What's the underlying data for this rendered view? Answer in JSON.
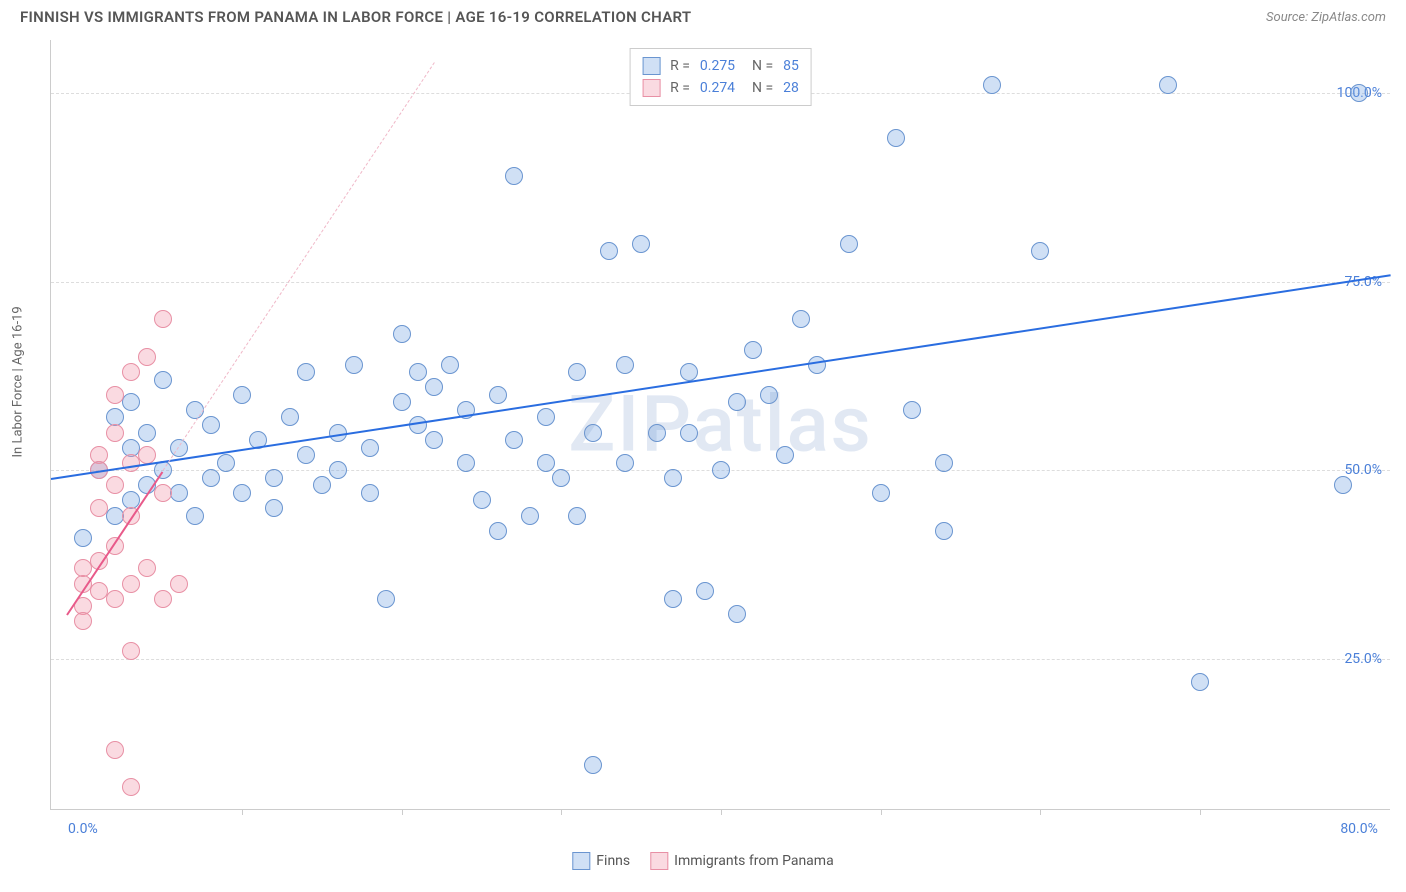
{
  "title": "FINNISH VS IMMIGRANTS FROM PANAMA IN LABOR FORCE | AGE 16-19 CORRELATION CHART",
  "source": "Source: ZipAtlas.com",
  "ylabel": "In Labor Force | Age 16-19",
  "watermark": "ZIPatlas",
  "chart": {
    "type": "scatter",
    "background_color": "#ffffff",
    "grid_color": "#dddddd",
    "axis_color": "#cccccc",
    "tick_label_color": "#4a7fd8",
    "xlim": [
      -2,
      82
    ],
    "ylim": [
      5,
      107
    ],
    "xticks": [
      0,
      80
    ],
    "xtick_minor": [
      10,
      20,
      30,
      40,
      50,
      60,
      70
    ],
    "yticks": [
      25,
      50,
      75,
      100
    ],
    "ytick_labels": [
      "25.0%",
      "50.0%",
      "75.0%",
      "100.0%"
    ],
    "xtick_labels": [
      "0.0%",
      "80.0%"
    ],
    "point_radius": 9,
    "point_stroke_width": 1.2,
    "series": [
      {
        "name": "Finns",
        "fill": "rgba(120, 165, 225, 0.35)",
        "stroke": "#6a95d0",
        "trend_color": "#2a6de0",
        "trend_dashed_color": "#a8c0e8",
        "R": "0.275",
        "N": "85",
        "trend": {
          "x1": -2,
          "y1": 49,
          "x2": 82,
          "y2": 76
        },
        "points": [
          [
            0,
            41
          ],
          [
            1,
            50
          ],
          [
            2,
            57
          ],
          [
            2,
            44
          ],
          [
            3,
            53
          ],
          [
            3,
            46
          ],
          [
            3,
            59
          ],
          [
            4,
            48
          ],
          [
            4,
            55
          ],
          [
            5,
            50
          ],
          [
            5,
            62
          ],
          [
            6,
            47
          ],
          [
            6,
            53
          ],
          [
            7,
            58
          ],
          [
            7,
            44
          ],
          [
            8,
            49
          ],
          [
            8,
            56
          ],
          [
            9,
            51
          ],
          [
            10,
            60
          ],
          [
            10,
            47
          ],
          [
            11,
            54
          ],
          [
            12,
            49
          ],
          [
            12,
            45
          ],
          [
            13,
            57
          ],
          [
            14,
            52
          ],
          [
            14,
            63
          ],
          [
            15,
            48
          ],
          [
            16,
            55
          ],
          [
            16,
            50
          ],
          [
            17,
            64
          ],
          [
            18,
            53
          ],
          [
            18,
            47
          ],
          [
            19,
            33
          ],
          [
            20,
            59
          ],
          [
            20,
            68
          ],
          [
            21,
            63
          ],
          [
            21,
            56
          ],
          [
            22,
            61
          ],
          [
            22,
            54
          ],
          [
            23,
            64
          ],
          [
            24,
            58
          ],
          [
            24,
            51
          ],
          [
            25,
            46
          ],
          [
            26,
            60
          ],
          [
            26,
            42
          ],
          [
            27,
            54
          ],
          [
            27,
            89
          ],
          [
            28,
            44
          ],
          [
            29,
            57
          ],
          [
            29,
            51
          ],
          [
            30,
            49
          ],
          [
            31,
            63
          ],
          [
            31,
            44
          ],
          [
            32,
            55
          ],
          [
            32,
            11
          ],
          [
            33,
            79
          ],
          [
            34,
            51
          ],
          [
            34,
            64
          ],
          [
            35,
            80
          ],
          [
            36,
            55
          ],
          [
            37,
            49
          ],
          [
            37,
            33
          ],
          [
            38,
            63
          ],
          [
            38,
            55
          ],
          [
            39,
            34
          ],
          [
            40,
            50
          ],
          [
            41,
            59
          ],
          [
            41,
            31
          ],
          [
            42,
            66
          ],
          [
            43,
            60
          ],
          [
            44,
            52
          ],
          [
            45,
            70
          ],
          [
            46,
            64
          ],
          [
            48,
            80
          ],
          [
            50,
            47
          ],
          [
            51,
            94
          ],
          [
            52,
            58
          ],
          [
            54,
            51
          ],
          [
            54,
            42
          ],
          [
            57,
            101
          ],
          [
            60,
            79
          ],
          [
            68,
            101
          ],
          [
            70,
            22
          ],
          [
            79,
            48
          ],
          [
            80,
            100
          ]
        ]
      },
      {
        "name": "Immigrants from Panama",
        "fill": "rgba(240, 150, 170, 0.35)",
        "stroke": "#e890a5",
        "trend_color": "#e85a8a",
        "trend_dashed_color": "#f0b8c8",
        "R": "0.274",
        "N": "28",
        "trend": {
          "x1": -1,
          "y1": 31,
          "x2": 5,
          "y2": 50
        },
        "trend_dashed": {
          "x1": 5,
          "y1": 50,
          "x2": 22,
          "y2": 104
        },
        "points": [
          [
            0,
            32
          ],
          [
            0,
            35
          ],
          [
            0,
            37
          ],
          [
            0,
            30
          ],
          [
            1,
            34
          ],
          [
            1,
            45
          ],
          [
            1,
            38
          ],
          [
            1,
            50
          ],
          [
            1,
            52
          ],
          [
            2,
            33
          ],
          [
            2,
            40
          ],
          [
            2,
            48
          ],
          [
            2,
            55
          ],
          [
            2,
            60
          ],
          [
            3,
            35
          ],
          [
            3,
            44
          ],
          [
            3,
            51
          ],
          [
            3,
            63
          ],
          [
            3,
            26
          ],
          [
            4,
            37
          ],
          [
            4,
            52
          ],
          [
            4,
            65
          ],
          [
            5,
            33
          ],
          [
            5,
            70
          ],
          [
            5,
            47
          ],
          [
            2,
            13
          ],
          [
            3,
            8
          ],
          [
            6,
            35
          ]
        ]
      }
    ]
  },
  "legend_bottom": {
    "finns": "Finns",
    "panama": "Immigrants from Panama"
  }
}
